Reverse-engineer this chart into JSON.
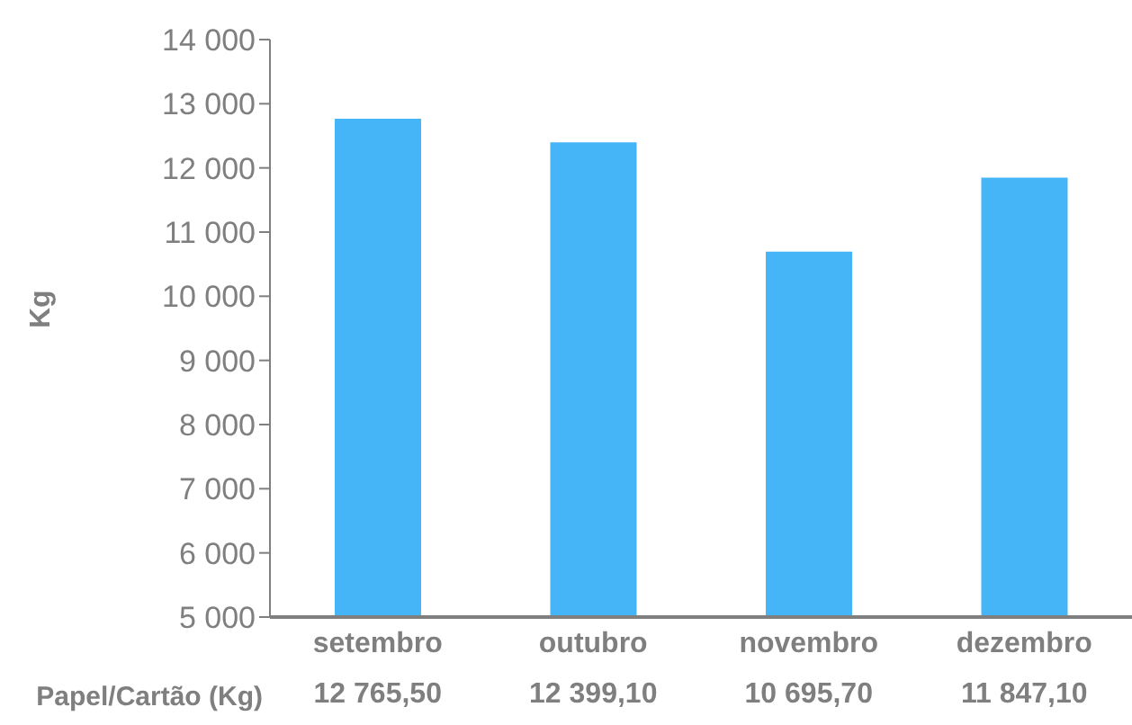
{
  "chart_data": {
    "type": "bar",
    "ylabel": "Kg",
    "categories": [
      "setembro",
      "outubro",
      "novembro",
      "dezembro"
    ],
    "series": [
      {
        "name": "Papel/Cartão (Kg)",
        "color": "#45b5f8",
        "values": [
          12765.5,
          12399.1,
          10695.7,
          11847.1
        ],
        "value_labels": [
          "12 765,50",
          "12 399,10",
          "10 695,70",
          "11 847,10"
        ]
      }
    ],
    "ylim": [
      5000,
      14000
    ],
    "yticks": [
      {
        "value": 5000,
        "label": "5 000"
      },
      {
        "value": 6000,
        "label": "6 000"
      },
      {
        "value": 7000,
        "label": "7 000"
      },
      {
        "value": 8000,
        "label": "8 000"
      },
      {
        "value": 9000,
        "label": "9 000"
      },
      {
        "value": 10000,
        "label": "10 000"
      },
      {
        "value": 11000,
        "label": "11 000"
      },
      {
        "value": 12000,
        "label": "12 000"
      },
      {
        "value": 13000,
        "label": "13 000"
      },
      {
        "value": 14000,
        "label": "14 000"
      }
    ],
    "grid": false,
    "legend": false
  }
}
